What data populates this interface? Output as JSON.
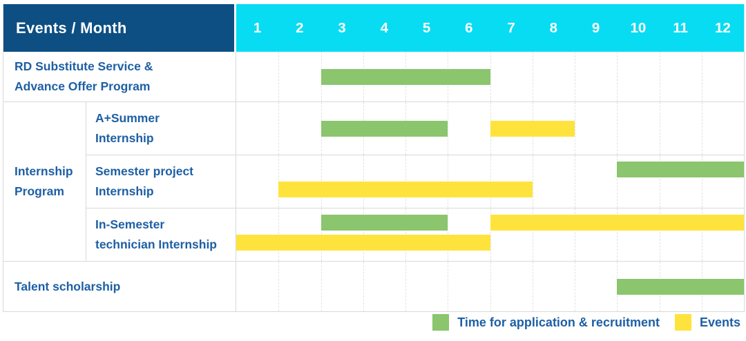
{
  "colors": {
    "header_bg": "#0d4f83",
    "months_bg": "#08dcf2",
    "label_text": "#1e5fa4",
    "green": "#8bc56d",
    "yellow": "#ffe33d",
    "grid": "#d9d9d9"
  },
  "header": {
    "title": "Events / Month",
    "months": [
      "1",
      "2",
      "3",
      "4",
      "5",
      "6",
      "7",
      "8",
      "9",
      "10",
      "11",
      "12"
    ]
  },
  "group": {
    "line1": "Internship",
    "line2": "Program"
  },
  "rows": [
    {
      "label_line1": "RD Substitute Service &",
      "label_line2": "Advance Offer Program",
      "bars": [
        {
          "color": "green",
          "start": 3,
          "end": 6,
          "track": "single"
        }
      ]
    },
    {
      "label_line1": "A+Summer",
      "label_line2": "Internship",
      "bars": [
        {
          "color": "green",
          "start": 3,
          "end": 5,
          "track": "single"
        },
        {
          "color": "yellow",
          "start": 7,
          "end": 8,
          "track": "single"
        }
      ]
    },
    {
      "label_line1": "Semester project",
      "label_line2": "Internship",
      "bars": [
        {
          "color": "green",
          "start": 10,
          "end": 12,
          "track": "top"
        },
        {
          "color": "yellow",
          "start": 2,
          "end": 7,
          "track": "bottom"
        }
      ]
    },
    {
      "label_line1": "In-Semester",
      "label_line2": "technician Internship",
      "bars": [
        {
          "color": "green",
          "start": 3,
          "end": 5,
          "track": "top"
        },
        {
          "color": "yellow",
          "start": 7,
          "end": 12,
          "track": "top"
        },
        {
          "color": "yellow",
          "start": 1,
          "end": 6,
          "track": "bottom"
        }
      ]
    },
    {
      "label_line1": "Talent scholarship",
      "bars": [
        {
          "color": "green",
          "start": 10,
          "end": 12,
          "track": "single"
        }
      ]
    }
  ],
  "legend": [
    {
      "color": "green",
      "label": "Time for application & recruitment"
    },
    {
      "color": "yellow",
      "label": "Events"
    }
  ],
  "chart_data": {
    "type": "table",
    "subtype": "gantt",
    "title": "Events / Month",
    "x_axis": {
      "label": "Month",
      "ticks": [
        1,
        2,
        3,
        4,
        5,
        6,
        7,
        8,
        9,
        10,
        11,
        12
      ]
    },
    "series_colors": {
      "Time for application & recruitment": "#8bc56d",
      "Events": "#ffe33d"
    },
    "rows": [
      {
        "event": "RD Substitute Service & Advance Offer Program",
        "group": null,
        "application_recruitment_month_spans": [
          [
            3,
            6
          ]
        ],
        "events_month_spans": []
      },
      {
        "event": "A+Summer Internship",
        "group": "Internship Program",
        "application_recruitment_month_spans": [
          [
            3,
            5
          ]
        ],
        "events_month_spans": [
          [
            7,
            8
          ]
        ]
      },
      {
        "event": "Semester project Internship",
        "group": "Internship Program",
        "application_recruitment_month_spans": [
          [
            10,
            12
          ]
        ],
        "events_month_spans": [
          [
            2,
            7
          ]
        ]
      },
      {
        "event": "In-Semester technician Internship",
        "group": "Internship Program",
        "application_recruitment_month_spans": [
          [
            3,
            5
          ]
        ],
        "events_month_spans": [
          [
            7,
            12
          ],
          [
            1,
            6
          ]
        ]
      },
      {
        "event": "Talent scholarship",
        "group": null,
        "application_recruitment_month_spans": [
          [
            10,
            12
          ]
        ],
        "events_month_spans": []
      }
    ],
    "legend_position": "bottom-right",
    "grid": "dashed-vertical-month-lines"
  }
}
